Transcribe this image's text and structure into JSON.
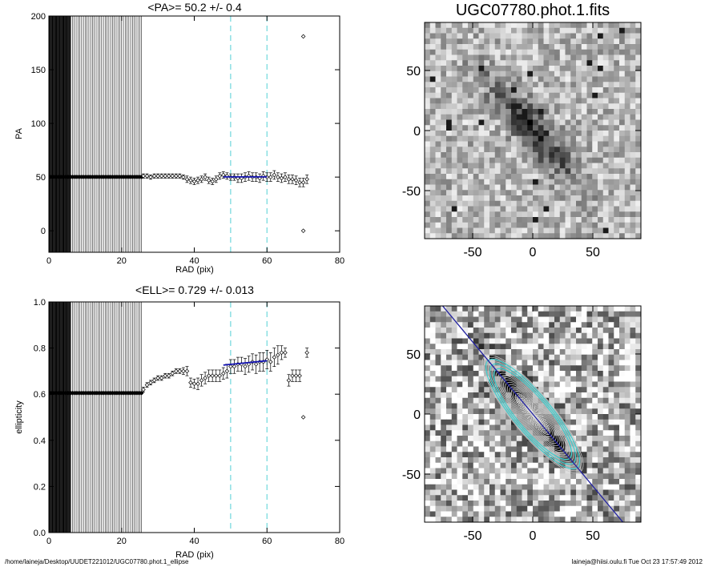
{
  "chart_data": [
    {
      "type": "scatter",
      "title": "<PA>=  50.2 +/-   0.4",
      "xlabel": "RAD (pix)",
      "ylabel": "PA",
      "xlim": [
        0,
        80
      ],
      "ylim": [
        -20,
        200
      ],
      "xticks": [
        "0",
        "20",
        "40",
        "60",
        "80"
      ],
      "yticks": [
        "0",
        "50",
        "100",
        "150",
        "200"
      ],
      "vertical_lines": [
        50,
        60
      ],
      "fit": {
        "x": [
          48,
          60
        ],
        "y": 50.2,
        "color": "#1414b4"
      },
      "series": [
        {
          "x": [
            0.1,
            0.5,
            1.0,
            1.5,
            2.0,
            2.5,
            3.0,
            3.5,
            4.0,
            4.5,
            5.0,
            5.5,
            6.0,
            6.5,
            7.0,
            7.5,
            8.0,
            8.5,
            9.0,
            9.5,
            10.0,
            10.5,
            11.0,
            11.5,
            12.0,
            12.5,
            13.0,
            13.5,
            14.0,
            14.5,
            15.0,
            15.5,
            16.0,
            16.5,
            17.0,
            17.5,
            18.0,
            18.5,
            19.0,
            19.5,
            20.0,
            20.5,
            21.0,
            21.5,
            22.0,
            22.5,
            23.0,
            23.5,
            24.0,
            24.5,
            25.0,
            25.5
          ],
          "y": [
            50.2,
            50.2,
            50.2,
            50.2,
            50.2,
            50.2,
            50.2,
            50.2,
            50.2,
            50.2,
            50.2,
            50.2,
            50.2,
            50.2,
            50.2,
            50.2,
            50.2,
            50.2,
            50.2,
            50.2,
            50.2,
            50.2,
            50.2,
            50.2,
            50.2,
            50.2,
            50.2,
            50.2,
            50.2,
            50.2,
            50.2,
            50.2,
            50.2,
            50.2,
            50.2,
            50.2,
            50.2,
            50.2,
            50.2,
            50.2,
            50.2,
            50.2,
            50.2,
            50.2,
            50.2,
            50.2,
            50.2,
            50.2,
            50.2,
            50.2,
            50.2,
            50.2
          ]
        },
        {
          "x": [
            26,
            27,
            28,
            29,
            30,
            31,
            32,
            33,
            34,
            35,
            36,
            37,
            38,
            39,
            40,
            41,
            42,
            43,
            44,
            45,
            46,
            47,
            48,
            49,
            50,
            51,
            52,
            53,
            54,
            55,
            56,
            57,
            58,
            59,
            60,
            61,
            62,
            63,
            64,
            65,
            66,
            67,
            68,
            69,
            70,
            71
          ],
          "y": [
            51,
            51,
            50,
            51,
            51,
            51,
            51,
            51,
            51,
            51,
            51,
            50,
            48,
            47,
            46,
            47,
            48,
            50,
            47,
            46,
            48,
            51,
            52,
            51,
            50,
            50,
            49,
            49,
            50,
            51,
            50,
            50,
            49,
            51,
            50,
            50,
            52,
            50,
            49,
            50,
            48,
            48,
            47,
            45,
            45,
            48
          ],
          "yerr": [
            2,
            2,
            2,
            2,
            2,
            2,
            2,
            2,
            2,
            2,
            2,
            2,
            3,
            3,
            3,
            3,
            3,
            3,
            3,
            3,
            3,
            3,
            3,
            3,
            3,
            3,
            4,
            4,
            4,
            4,
            4,
            4,
            4,
            4,
            4,
            4,
            4,
            4,
            4,
            4,
            4,
            4,
            4,
            4,
            4,
            4
          ]
        },
        {
          "x": [
            70,
            70
          ],
          "y": [
            181,
            0
          ]
        }
      ]
    },
    {
      "type": "scatter",
      "title": "<ELL>= 0.729 +/-  0.013",
      "xlabel": "RAD (pix)",
      "ylabel": "ellipticity",
      "xlim": [
        0,
        80
      ],
      "ylim": [
        0,
        1
      ],
      "xticks": [
        "0",
        "20",
        "40",
        "60",
        "80"
      ],
      "yticks": [
        "0.0",
        "0.2",
        "0.4",
        "0.6",
        "0.8",
        "1.0"
      ],
      "vertical_lines": [
        50,
        60
      ],
      "fit": {
        "x": [
          48,
          60
        ],
        "y0": 0.726,
        "y1": 0.745,
        "color": "#1414b4"
      },
      "series": [
        {
          "x": [
            0.1,
            0.5,
            1.0,
            1.5,
            2.0,
            2.5,
            3.0,
            3.5,
            4.0,
            4.5,
            5.0,
            5.5,
            6.0,
            6.5,
            7.0,
            7.5,
            8.0,
            8.5,
            9.0,
            9.5,
            10.0,
            10.5,
            11.0,
            11.5,
            12.0,
            12.5,
            13.0,
            13.5,
            14.0,
            14.5,
            15.0,
            15.5,
            16.0,
            16.5,
            17.0,
            17.5,
            18.0,
            18.5,
            19.0,
            19.5,
            20.0,
            20.5,
            21.0,
            21.5,
            22.0,
            22.5,
            23.0,
            23.5,
            24.0,
            24.5,
            25.0,
            25.5
          ],
          "y": [
            0.605,
            0.605,
            0.605,
            0.605,
            0.605,
            0.605,
            0.605,
            0.605,
            0.605,
            0.605,
            0.605,
            0.605,
            0.605,
            0.605,
            0.605,
            0.605,
            0.605,
            0.605,
            0.605,
            0.605,
            0.605,
            0.605,
            0.605,
            0.605,
            0.605,
            0.605,
            0.605,
            0.605,
            0.605,
            0.605,
            0.605,
            0.605,
            0.605,
            0.605,
            0.605,
            0.605,
            0.605,
            0.605,
            0.605,
            0.605,
            0.605,
            0.605,
            0.605,
            0.605,
            0.605,
            0.605,
            0.605,
            0.605,
            0.605,
            0.605,
            0.605,
            0.605
          ]
        },
        {
          "x": [
            26,
            27,
            28,
            29,
            30,
            31,
            32,
            33,
            34,
            35,
            36,
            37,
            38,
            39,
            40,
            41,
            42,
            43,
            44,
            45,
            46,
            47,
            48,
            49,
            50,
            51,
            52,
            53,
            54,
            55,
            56,
            57,
            58,
            59,
            60,
            61,
            62,
            63,
            64,
            65,
            66,
            67,
            68,
            69,
            70,
            71
          ],
          "y": [
            0.62,
            0.64,
            0.65,
            0.66,
            0.67,
            0.67,
            0.68,
            0.68,
            0.69,
            0.7,
            0.7,
            0.7,
            0.7,
            0.65,
            0.645,
            0.645,
            0.66,
            0.67,
            0.68,
            0.68,
            0.68,
            0.68,
            0.69,
            0.7,
            0.72,
            0.72,
            0.73,
            0.73,
            0.72,
            0.73,
            0.74,
            0.73,
            0.74,
            0.74,
            0.75,
            0.74,
            0.76,
            0.77,
            0.78,
            0.78,
            0.66,
            0.68,
            0.68,
            0.68,
            0.5,
            0.78
          ],
          "yerr": [
            0.01,
            0.01,
            0.01,
            0.01,
            0.01,
            0.01,
            0.01,
            0.01,
            0.01,
            0.01,
            0.01,
            0.015,
            0.02,
            0.02,
            0.02,
            0.025,
            0.025,
            0.025,
            0.025,
            0.025,
            0.025,
            0.025,
            0.025,
            0.03,
            0.03,
            0.03,
            0.03,
            0.03,
            0.035,
            0.035,
            0.035,
            0.04,
            0.04,
            0.04,
            0.04,
            0.04,
            0.04,
            0.04,
            0.03,
            0.02,
            0.025,
            0.025,
            0.025,
            0.025,
            0.0,
            0.02
          ]
        }
      ]
    },
    {
      "type": "heatmap",
      "title": "UGC07780.phot.1.fits",
      "xlim": [
        -90,
        90
      ],
      "ylim": [
        -90,
        90
      ],
      "xticks": [
        "-50",
        "0",
        "50"
      ],
      "yticks": [
        "-50",
        "0",
        "50"
      ],
      "colormap": "grayscale"
    },
    {
      "type": "heatmap",
      "title": "",
      "xlim": [
        -90,
        90
      ],
      "ylim": [
        -90,
        90
      ],
      "xticks": [
        "-50",
        "0",
        "50"
      ],
      "yticks": [
        "-50",
        "0",
        "50"
      ],
      "colormap": "grayscale",
      "overlay": {
        "ellipse_pa_deg": 50.2,
        "ellipticity": 0.729,
        "contour_color": "#c8c8c8",
        "fit_color": "#40d0d0",
        "axis_line_color": "#2020a0"
      }
    }
  ],
  "footer": {
    "path": "/home/laineja/Desktop/UUDET221012/UGC07780.phot.1_ellipse",
    "user_time": "laineja@hiisi.oulu.fi   Tue Oct 23 17:57:49 2012"
  }
}
